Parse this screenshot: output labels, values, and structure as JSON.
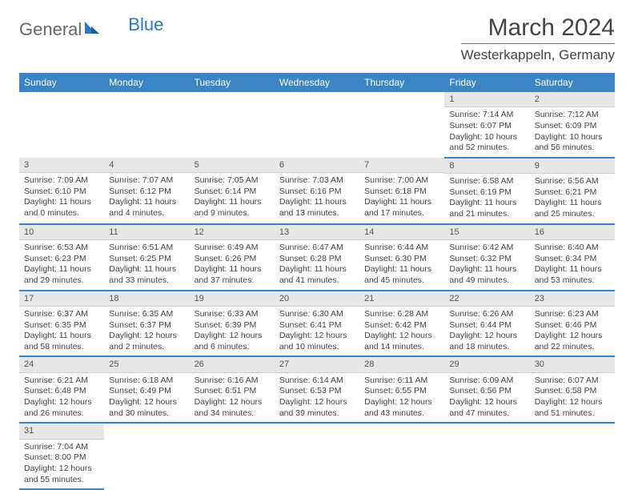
{
  "logo": {
    "general": "General",
    "blue": "Blue"
  },
  "title": "March 2024",
  "location": "Westerkappeln, Germany",
  "colors": {
    "header_bg": "#3b85c6",
    "header_text": "#ffffff",
    "daynum_bg": "#e7e7e7",
    "border_accent": "#3b85c6",
    "text": "#444444"
  },
  "weekdays": [
    "Sunday",
    "Monday",
    "Tuesday",
    "Wednesday",
    "Thursday",
    "Friday",
    "Saturday"
  ],
  "first_weekday_index": 5,
  "days": [
    {
      "n": 1,
      "sr": "7:14 AM",
      "ss": "6:07 PM",
      "dl": "10 hours and 52 minutes."
    },
    {
      "n": 2,
      "sr": "7:12 AM",
      "ss": "6:09 PM",
      "dl": "10 hours and 56 minutes."
    },
    {
      "n": 3,
      "sr": "7:09 AM",
      "ss": "6:10 PM",
      "dl": "11 hours and 0 minutes."
    },
    {
      "n": 4,
      "sr": "7:07 AM",
      "ss": "6:12 PM",
      "dl": "11 hours and 4 minutes."
    },
    {
      "n": 5,
      "sr": "7:05 AM",
      "ss": "6:14 PM",
      "dl": "11 hours and 9 minutes."
    },
    {
      "n": 6,
      "sr": "7:03 AM",
      "ss": "6:16 PM",
      "dl": "11 hours and 13 minutes."
    },
    {
      "n": 7,
      "sr": "7:00 AM",
      "ss": "6:18 PM",
      "dl": "11 hours and 17 minutes."
    },
    {
      "n": 8,
      "sr": "6:58 AM",
      "ss": "6:19 PM",
      "dl": "11 hours and 21 minutes."
    },
    {
      "n": 9,
      "sr": "6:56 AM",
      "ss": "6:21 PM",
      "dl": "11 hours and 25 minutes."
    },
    {
      "n": 10,
      "sr": "6:53 AM",
      "ss": "6:23 PM",
      "dl": "11 hours and 29 minutes."
    },
    {
      "n": 11,
      "sr": "6:51 AM",
      "ss": "6:25 PM",
      "dl": "11 hours and 33 minutes."
    },
    {
      "n": 12,
      "sr": "6:49 AM",
      "ss": "6:26 PM",
      "dl": "11 hours and 37 minutes."
    },
    {
      "n": 13,
      "sr": "6:47 AM",
      "ss": "6:28 PM",
      "dl": "11 hours and 41 minutes."
    },
    {
      "n": 14,
      "sr": "6:44 AM",
      "ss": "6:30 PM",
      "dl": "11 hours and 45 minutes."
    },
    {
      "n": 15,
      "sr": "6:42 AM",
      "ss": "6:32 PM",
      "dl": "11 hours and 49 minutes."
    },
    {
      "n": 16,
      "sr": "6:40 AM",
      "ss": "6:34 PM",
      "dl": "11 hours and 53 minutes."
    },
    {
      "n": 17,
      "sr": "6:37 AM",
      "ss": "6:35 PM",
      "dl": "11 hours and 58 minutes."
    },
    {
      "n": 18,
      "sr": "6:35 AM",
      "ss": "6:37 PM",
      "dl": "12 hours and 2 minutes."
    },
    {
      "n": 19,
      "sr": "6:33 AM",
      "ss": "6:39 PM",
      "dl": "12 hours and 6 minutes."
    },
    {
      "n": 20,
      "sr": "6:30 AM",
      "ss": "6:41 PM",
      "dl": "12 hours and 10 minutes."
    },
    {
      "n": 21,
      "sr": "6:28 AM",
      "ss": "6:42 PM",
      "dl": "12 hours and 14 minutes."
    },
    {
      "n": 22,
      "sr": "6:26 AM",
      "ss": "6:44 PM",
      "dl": "12 hours and 18 minutes."
    },
    {
      "n": 23,
      "sr": "6:23 AM",
      "ss": "6:46 PM",
      "dl": "12 hours and 22 minutes."
    },
    {
      "n": 24,
      "sr": "6:21 AM",
      "ss": "6:48 PM",
      "dl": "12 hours and 26 minutes."
    },
    {
      "n": 25,
      "sr": "6:18 AM",
      "ss": "6:49 PM",
      "dl": "12 hours and 30 minutes."
    },
    {
      "n": 26,
      "sr": "6:16 AM",
      "ss": "6:51 PM",
      "dl": "12 hours and 34 minutes."
    },
    {
      "n": 27,
      "sr": "6:14 AM",
      "ss": "6:53 PM",
      "dl": "12 hours and 39 minutes."
    },
    {
      "n": 28,
      "sr": "6:11 AM",
      "ss": "6:55 PM",
      "dl": "12 hours and 43 minutes."
    },
    {
      "n": 29,
      "sr": "6:09 AM",
      "ss": "6:56 PM",
      "dl": "12 hours and 47 minutes."
    },
    {
      "n": 30,
      "sr": "6:07 AM",
      "ss": "6:58 PM",
      "dl": "12 hours and 51 minutes."
    },
    {
      "n": 31,
      "sr": "7:04 AM",
      "ss": "8:00 PM",
      "dl": "12 hours and 55 minutes."
    }
  ],
  "labels": {
    "sunrise": "Sunrise: ",
    "sunset": "Sunset: ",
    "daylight": "Daylight: "
  }
}
